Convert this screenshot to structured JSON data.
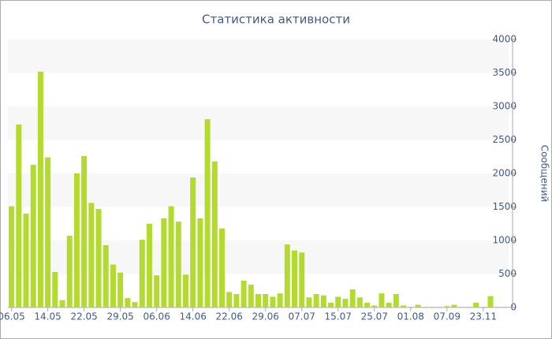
{
  "chart_data": {
    "type": "bar",
    "title": "Статистика активности",
    "y_label": "Сообщений",
    "color": "#b3db2f",
    "categories": [
      "06.05",
      null,
      null,
      null,
      null,
      "14.05",
      null,
      null,
      null,
      null,
      "22.05",
      null,
      null,
      null,
      null,
      "29.05",
      null,
      null,
      null,
      null,
      "06.06",
      null,
      null,
      null,
      null,
      "14.06",
      null,
      null,
      null,
      null,
      "22.06",
      null,
      null,
      null,
      null,
      "29.06",
      null,
      null,
      null,
      null,
      "07.07",
      null,
      null,
      null,
      null,
      "15.07",
      null,
      null,
      null,
      null,
      "25.07",
      null,
      null,
      null,
      null,
      "01.08",
      null,
      null,
      null,
      null,
      "07.09",
      null,
      null,
      null,
      null,
      "23.11",
      null,
      null,
      null
    ],
    "values": [
      1510,
      2730,
      1400,
      2130,
      3520,
      2240,
      530,
      110,
      1070,
      2000,
      2260,
      1560,
      1470,
      930,
      640,
      520,
      140,
      80,
      1010,
      1250,
      480,
      1330,
      1510,
      1280,
      490,
      1940,
      1330,
      2810,
      2180,
      1180,
      230,
      200,
      400,
      340,
      200,
      200,
      160,
      210,
      940,
      850,
      820,
      150,
      200,
      180,
      70,
      160,
      130,
      270,
      150,
      70,
      30,
      210,
      70,
      200,
      30,
      10,
      40,
      10,
      10,
      10,
      20,
      40,
      10,
      10,
      70,
      10,
      170,
      10,
      10
    ],
    "ylim": [
      0,
      4000
    ],
    "yticks": [
      0,
      500,
      1000,
      1500,
      2000,
      2500,
      3000,
      3500,
      4000
    ],
    "grid": true
  }
}
